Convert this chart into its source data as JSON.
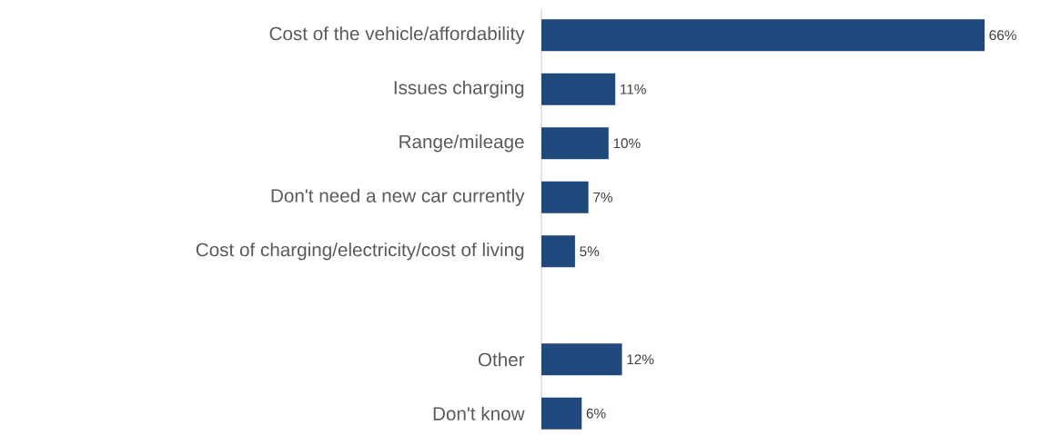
{
  "chart_data": {
    "type": "bar",
    "orientation": "horizontal",
    "categories": [
      "Cost of the vehicle/affordability",
      "Issues charging",
      "Range/mileage",
      "Don't need a new car currently",
      "Cost of charging/electricity/cost of living",
      null,
      "Other",
      "Don't know"
    ],
    "values": [
      66,
      11,
      10,
      7,
      5,
      null,
      12,
      6
    ],
    "value_labels": [
      "66%",
      "11%",
      "10%",
      "7%",
      "5%",
      null,
      "12%",
      "6%"
    ],
    "color": "#1f497d",
    "xlim": [
      0,
      66
    ]
  }
}
